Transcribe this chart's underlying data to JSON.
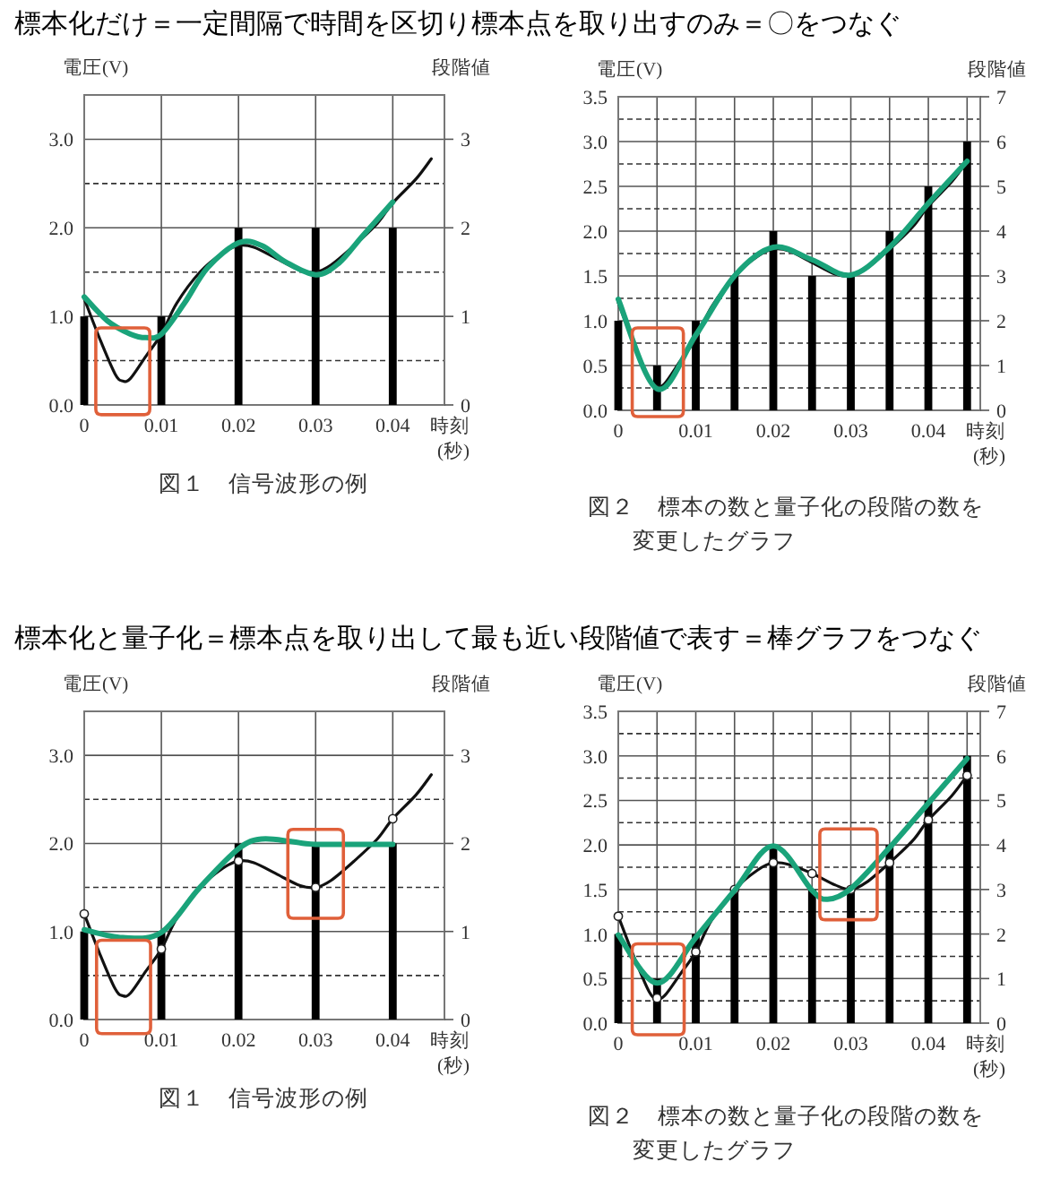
{
  "chart_data": [
    {
      "type": "bar",
      "title": "標本化だけ＝一定間隔で時間を区切り標本点を取り出すのみ＝〇をつなぐ",
      "xlabel": "時刻 (秒)",
      "ylabel": "電圧(V)",
      "y2label": "段階値",
      "xlim": [
        0,
        0.0467
      ],
      "ylim": [
        0,
        3.5
      ],
      "y2lim": [
        0,
        3.5
      ],
      "xticks": [
        0,
        0.01,
        0.02,
        0.03,
        0.04
      ],
      "yticks": [
        {
          "value": 0,
          "label": "0.0"
        },
        {
          "value": 1,
          "label": "1.0"
        },
        {
          "value": 2,
          "label": "2.0"
        },
        {
          "value": 3,
          "label": "3.0"
        }
      ],
      "y2ticks": [
        0,
        1,
        2,
        3
      ],
      "grid": true,
      "ref_lines": [
        {
          "axis": "y",
          "value": 0.5,
          "line_style": "dashed"
        },
        {
          "axis": "y",
          "value": 1.5,
          "line_style": "dashed"
        },
        {
          "axis": "y",
          "value": 2.5,
          "line_style": "dashed"
        }
      ],
      "series": [
        {
          "color": "#000000",
          "x": [
            0,
            0.01,
            0.02,
            0.03,
            0.04
          ],
          "values": [
            1,
            1,
            2,
            2,
            2
          ]
        },
        {
          "type": "line",
          "color": "#111111",
          "x": [
            0,
            0.002,
            0.004,
            0.005,
            0.006,
            0.008,
            0.01,
            0.012,
            0.015,
            0.018,
            0.02,
            0.022,
            0.025,
            0.028,
            0.03,
            0.032,
            0.035,
            0.038,
            0.04,
            0.043,
            0.045
          ],
          "values": [
            1.2,
            0.75,
            0.35,
            0.27,
            0.3,
            0.55,
            0.8,
            1.15,
            1.5,
            1.72,
            1.8,
            1.78,
            1.65,
            1.52,
            1.5,
            1.58,
            1.8,
            2.05,
            2.28,
            2.55,
            2.78
          ]
        },
        {
          "type": "line",
          "color": "#1aa37a",
          "x": [
            0,
            0.003,
            0.006,
            0.008,
            0.01,
            0.013,
            0.016,
            0.02,
            0.023,
            0.026,
            0.03,
            0.033,
            0.036,
            0.04
          ],
          "values": [
            1.22,
            0.95,
            0.8,
            0.76,
            0.8,
            1.15,
            1.55,
            1.83,
            1.8,
            1.62,
            1.47,
            1.6,
            1.9,
            2.29
          ]
        }
      ],
      "annotations": [
        "図１　信号波形の例"
      ]
    },
    {
      "type": "bar",
      "xlabel": "時刻 (秒)",
      "ylabel": "電圧(V)",
      "y2label": "段階値",
      "xlim": [
        0,
        0.0467
      ],
      "ylim": [
        0,
        3.5
      ],
      "y2lim": [
        0,
        7
      ],
      "xticks": [
        0,
        {
          "value": 0.005,
          "label": null
        },
        0.01,
        {
          "value": 0.015,
          "label": null
        },
        0.02,
        {
          "value": 0.025,
          "label": null
        },
        0.03,
        {
          "value": 0.035,
          "label": null
        },
        0.04,
        {
          "value": 0.045,
          "label": null
        }
      ],
      "yticks": [
        {
          "value": 0,
          "label": "0.0"
        },
        {
          "value": 0.5,
          "label": "0.5"
        },
        {
          "value": 1,
          "label": "1.0"
        },
        {
          "value": 1.5,
          "label": "1.5"
        },
        {
          "value": 2,
          "label": "2.0"
        },
        {
          "value": 2.5,
          "label": "2.5"
        },
        {
          "value": 3,
          "label": "3.0"
        },
        {
          "value": 3.5,
          "label": "3.5"
        }
      ],
      "y2ticks": [
        0,
        1,
        2,
        3,
        4,
        5,
        6,
        7
      ],
      "grid": true,
      "ref_lines": [
        {
          "axis": "y",
          "value": 0.25,
          "line_style": "dashed"
        },
        {
          "axis": "y",
          "value": 0.75,
          "line_style": "dashed"
        },
        {
          "axis": "y",
          "value": 1.25,
          "line_style": "dashed"
        },
        {
          "axis": "y",
          "value": 1.75,
          "line_style": "dashed"
        },
        {
          "axis": "y",
          "value": 2.25,
          "line_style": "dashed"
        },
        {
          "axis": "y",
          "value": 2.75,
          "line_style": "dashed"
        },
        {
          "axis": "y",
          "value": 3.25,
          "line_style": "dashed"
        }
      ],
      "series": [
        {
          "color": "#000000",
          "x": [
            0,
            0.005,
            0.01,
            0.015,
            0.02,
            0.025,
            0.03,
            0.035,
            0.04,
            0.045
          ],
          "values": [
            1,
            0.5,
            1,
            1.5,
            2,
            1.5,
            1.5,
            2,
            2.5,
            3
          ]
        },
        {
          "type": "line",
          "color": "#111111",
          "x": [
            0,
            0.002,
            0.004,
            0.005,
            0.006,
            0.008,
            0.01,
            0.012,
            0.015,
            0.018,
            0.02,
            0.022,
            0.025,
            0.028,
            0.03,
            0.032,
            0.035,
            0.038,
            0.04,
            0.043,
            0.045
          ],
          "values": [
            1.2,
            0.75,
            0.35,
            0.27,
            0.3,
            0.55,
            0.8,
            1.15,
            1.5,
            1.72,
            1.8,
            1.78,
            1.65,
            1.52,
            1.5,
            1.58,
            1.8,
            2.05,
            2.28,
            2.55,
            2.78
          ]
        },
        {
          "type": "line",
          "color": "#1aa37a",
          "x": [
            0,
            0.005,
            0.01,
            0.015,
            0.02,
            0.025,
            0.03,
            0.035,
            0.04,
            0.045
          ],
          "values": [
            1.24,
            0.24,
            0.84,
            1.5,
            1.82,
            1.68,
            1.51,
            1.82,
            2.31,
            2.78
          ]
        }
      ],
      "annotations": [
        "図２　標本の数と量子化の段階の数を変更したグラフ"
      ]
    },
    {
      "type": "bar",
      "title": "標本化と量子化＝標本点を取り出して最も近い段階値で表す＝棒グラフをつなぐ",
      "xlabel": "時刻 (秒)",
      "ylabel": "電圧(V)",
      "y2label": "段階値",
      "xlim": [
        0,
        0.0467
      ],
      "ylim": [
        0,
        3.5
      ],
      "y2lim": [
        0,
        3.5
      ],
      "xticks": [
        0,
        0.01,
        0.02,
        0.03,
        0.04
      ],
      "yticks": [
        {
          "value": 0,
          "label": "0.0"
        },
        {
          "value": 1,
          "label": "1.0"
        },
        {
          "value": 2,
          "label": "2.0"
        },
        {
          "value": 3,
          "label": "3.0"
        }
      ],
      "y2ticks": [
        0,
        1,
        2,
        3
      ],
      "grid": true,
      "ref_lines": [
        {
          "axis": "y",
          "value": 0.5,
          "line_style": "dashed"
        },
        {
          "axis": "y",
          "value": 1.5,
          "line_style": "dashed"
        },
        {
          "axis": "y",
          "value": 2.5,
          "line_style": "dashed"
        }
      ],
      "series": [
        {
          "color": "#000000",
          "x": [
            0,
            0.01,
            0.02,
            0.03,
            0.04
          ],
          "values": [
            1,
            1,
            2,
            2,
            2
          ]
        },
        {
          "type": "line",
          "color": "#111111",
          "x": [
            0,
            0.002,
            0.004,
            0.005,
            0.006,
            0.008,
            0.01,
            0.012,
            0.015,
            0.018,
            0.02,
            0.022,
            0.025,
            0.028,
            0.03,
            0.032,
            0.035,
            0.038,
            0.04,
            0.043,
            0.045
          ],
          "values": [
            1.2,
            0.75,
            0.35,
            0.27,
            0.3,
            0.55,
            0.8,
            1.15,
            1.5,
            1.72,
            1.8,
            1.78,
            1.65,
            1.52,
            1.5,
            1.58,
            1.8,
            2.05,
            2.28,
            2.55,
            2.78
          ]
        },
        {
          "type": "scatter",
          "marker": "circle",
          "color": "#ffffff",
          "x": [
            0,
            0.01,
            0.02,
            0.03,
            0.04
          ],
          "values": [
            1.2,
            0.8,
            1.8,
            1.5,
            2.28
          ]
        },
        {
          "type": "line",
          "color": "#1aa37a",
          "x": [
            0,
            0.005,
            0.01,
            0.015,
            0.02,
            0.023,
            0.027,
            0.03,
            0.04
          ],
          "values": [
            1.02,
            0.93,
            0.99,
            1.5,
            1.94,
            2.05,
            2.02,
            1.99,
            1.99
          ]
        }
      ],
      "annotations": [
        "図１　信号波形の例"
      ]
    },
    {
      "type": "bar",
      "xlabel": "時刻 (秒)",
      "ylabel": "電圧(V)",
      "y2label": "段階値",
      "xlim": [
        0,
        0.0467
      ],
      "ylim": [
        0,
        3.5
      ],
      "y2lim": [
        0,
        7
      ],
      "xticks": [
        0,
        {
          "value": 0.005,
          "label": null
        },
        0.01,
        {
          "value": 0.015,
          "label": null
        },
        0.02,
        {
          "value": 0.025,
          "label": null
        },
        0.03,
        {
          "value": 0.035,
          "label": null
        },
        0.04,
        {
          "value": 0.045,
          "label": null
        }
      ],
      "yticks": [
        {
          "value": 0,
          "label": "0.0"
        },
        {
          "value": 0.5,
          "label": "0.5"
        },
        {
          "value": 1,
          "label": "1.0"
        },
        {
          "value": 1.5,
          "label": "1.5"
        },
        {
          "value": 2,
          "label": "2.0"
        },
        {
          "value": 2.5,
          "label": "2.5"
        },
        {
          "value": 3,
          "label": "3.0"
        },
        {
          "value": 3.5,
          "label": "3.5"
        }
      ],
      "y2ticks": [
        0,
        1,
        2,
        3,
        4,
        5,
        6,
        7
      ],
      "grid": true,
      "ref_lines": [
        {
          "axis": "y",
          "value": 0.25,
          "line_style": "dashed"
        },
        {
          "axis": "y",
          "value": 0.75,
          "line_style": "dashed"
        },
        {
          "axis": "y",
          "value": 1.25,
          "line_style": "dashed"
        },
        {
          "axis": "y",
          "value": 1.75,
          "line_style": "dashed"
        },
        {
          "axis": "y",
          "value": 2.25,
          "line_style": "dashed"
        },
        {
          "axis": "y",
          "value": 2.75,
          "line_style": "dashed"
        },
        {
          "axis": "y",
          "value": 3.25,
          "line_style": "dashed"
        }
      ],
      "series": [
        {
          "color": "#000000",
          "x": [
            0,
            0.005,
            0.01,
            0.015,
            0.02,
            0.025,
            0.03,
            0.035,
            0.04,
            0.045
          ],
          "values": [
            1,
            0.5,
            1,
            1.5,
            2,
            1.5,
            1.5,
            2,
            2.5,
            3
          ]
        },
        {
          "type": "line",
          "color": "#111111",
          "x": [
            0,
            0.002,
            0.004,
            0.005,
            0.006,
            0.008,
            0.01,
            0.012,
            0.015,
            0.018,
            0.02,
            0.022,
            0.025,
            0.028,
            0.03,
            0.032,
            0.035,
            0.038,
            0.04,
            0.043,
            0.045
          ],
          "values": [
            1.2,
            0.75,
            0.35,
            0.28,
            0.31,
            0.55,
            0.8,
            1.15,
            1.5,
            1.72,
            1.8,
            1.78,
            1.68,
            1.55,
            1.5,
            1.58,
            1.8,
            2.05,
            2.28,
            2.55,
            2.78
          ]
        },
        {
          "type": "scatter",
          "marker": "circle",
          "color": "#ffffff",
          "x": [
            0,
            0.005,
            0.01,
            0.015,
            0.02,
            0.025,
            0.03,
            0.035,
            0.04,
            0.045
          ],
          "values": [
            1.2,
            0.28,
            0.8,
            1.5,
            1.8,
            1.68,
            1.5,
            1.8,
            2.28,
            2.78
          ]
        },
        {
          "type": "line",
          "color": "#1aa37a",
          "x": [
            0,
            0.005,
            0.01,
            0.015,
            0.02,
            0.025,
            0.027,
            0.03,
            0.035,
            0.04,
            0.045
          ],
          "values": [
            0.99,
            0.45,
            0.96,
            1.49,
            1.99,
            1.49,
            1.39,
            1.51,
            1.97,
            2.47,
            2.97
          ]
        }
      ],
      "annotations": [
        "図２　標本の数と量子化の段階の数を変更したグラフ"
      ]
    }
  ]
}
